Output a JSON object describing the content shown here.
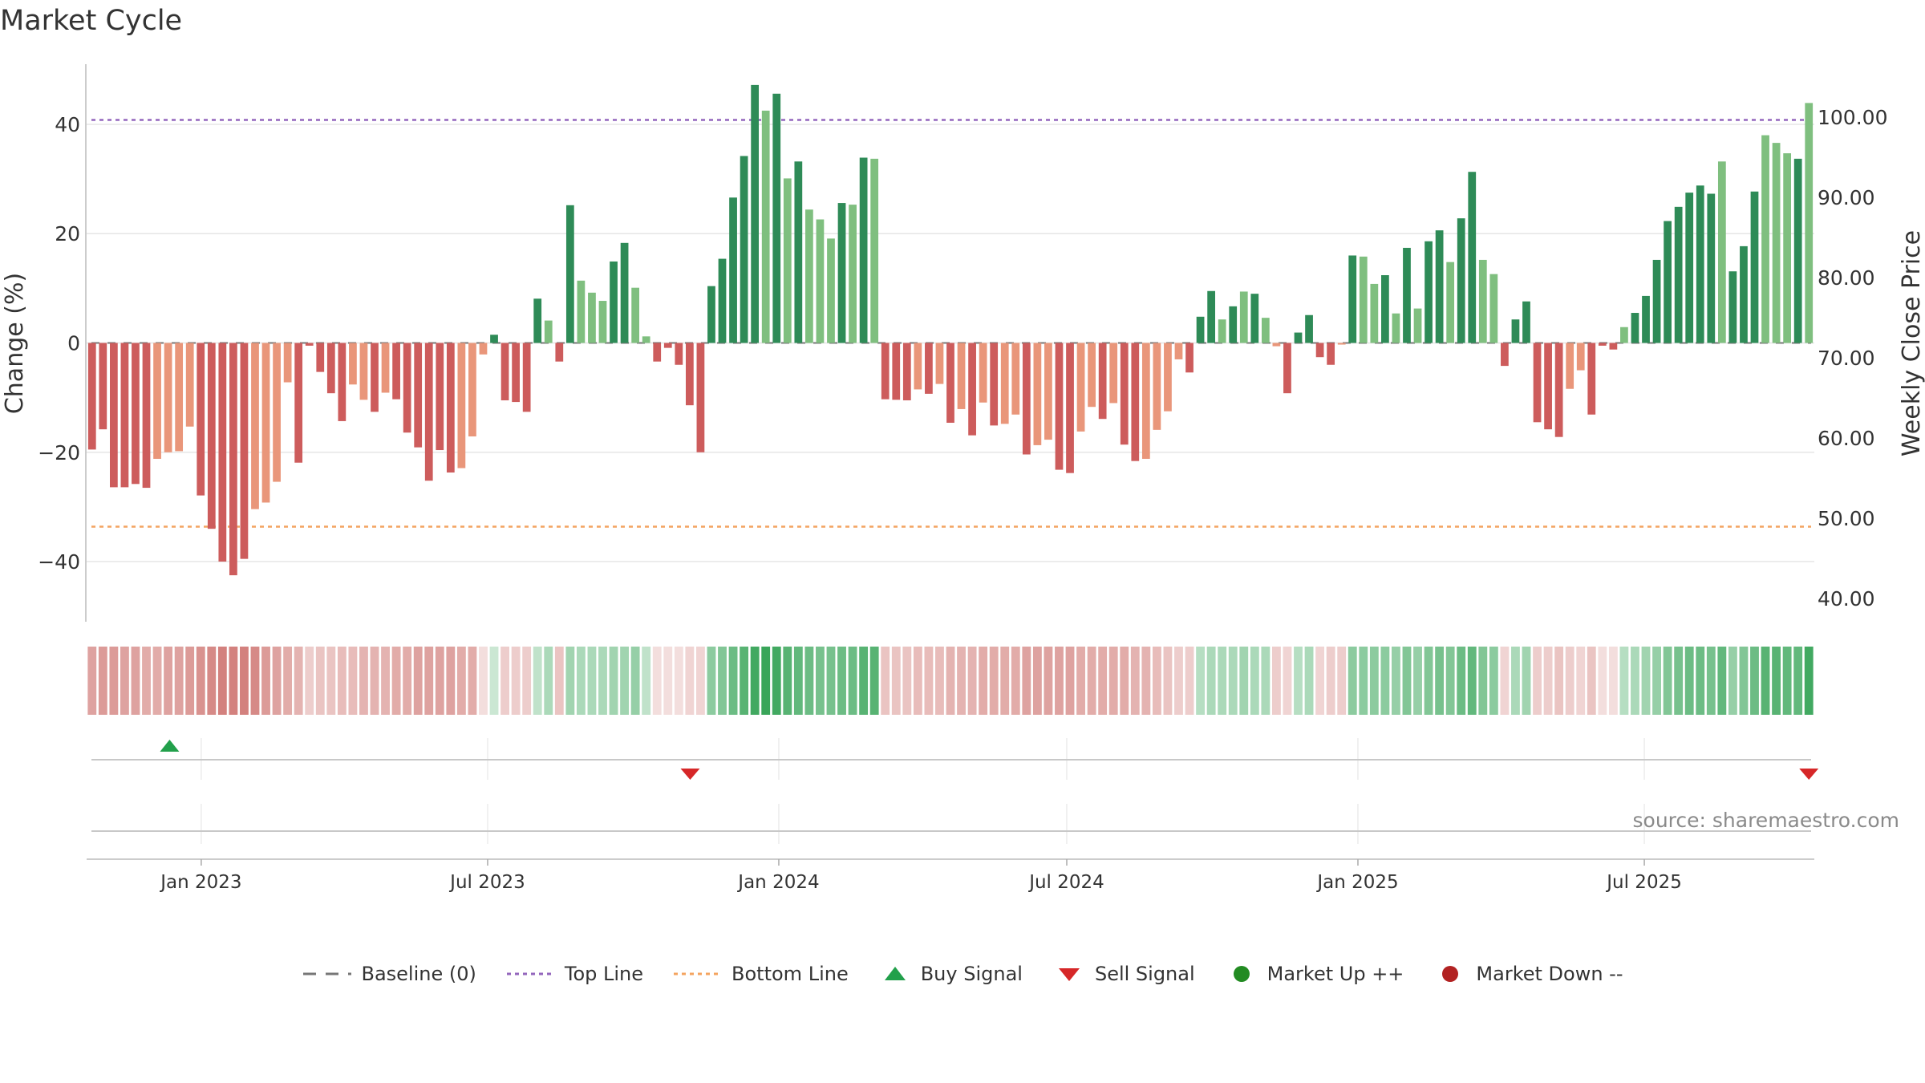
{
  "chart_title": "Market Cycle",
  "source": "source: sharemaestro.com",
  "colors": {
    "pos_strong": "#2e8b57",
    "pos_light": "#7fbf7f",
    "neg_strong": "#cd5c5c",
    "neg_light": "#e9967a",
    "top_line": "#9467bd",
    "bottom_line": "#f4a460",
    "baseline": "#777777",
    "buy": "#22a04b",
    "sell": "#d62728",
    "market_up": "#228b22",
    "market_down": "#b22222"
  },
  "legend": [
    {
      "key": "baseline",
      "label": "Baseline (0)"
    },
    {
      "key": "top",
      "label": "Top Line"
    },
    {
      "key": "bottom",
      "label": "Bottom Line"
    },
    {
      "key": "buy",
      "label": "Buy Signal"
    },
    {
      "key": "sell",
      "label": "Sell Signal"
    },
    {
      "key": "up",
      "label": "Market Up ++"
    },
    {
      "key": "down",
      "label": "Market Down --"
    }
  ],
  "chart_data": {
    "type": "bar",
    "title": "Market Cycle",
    "ylabel": "Change (%)",
    "y2label": "Weekly Close Price",
    "ylim": [
      -51,
      51
    ],
    "y2lim": [
      37.1,
      106.6
    ],
    "yticks": [
      -40,
      -20,
      0,
      20,
      40
    ],
    "ytick_labels": [
      "−40",
      "−20",
      "0",
      "20",
      "40"
    ],
    "y2ticks": [
      40,
      50,
      60,
      70,
      80,
      90,
      100
    ],
    "y2tick_labels": [
      "40.00",
      "50.00",
      "60.00",
      "70.00",
      "80.00",
      "90.00",
      "100.00"
    ],
    "x_start": "2022-10-24",
    "x_end": "2025-10-13",
    "xticks": [
      "2023-01-01",
      "2023-07-01",
      "2024-01-01",
      "2024-07-01",
      "2025-01-01",
      "2025-07-01"
    ],
    "xtick_labels": [
      "Jan 2023",
      "Jul 2023",
      "Jan 2024",
      "Jul 2024",
      "Jan 2025",
      "Jul 2025"
    ],
    "top_line": 40.8,
    "bottom_line": -33.6,
    "baseline": 0,
    "grid": true,
    "legend_position": "bottom",
    "series": [
      {
        "name": "Change (%)",
        "values": [
          -19.5,
          -15.8,
          -26.4,
          -26.4,
          -25.8,
          -26.5,
          -21.2,
          -20,
          -19.8,
          -15.3,
          -27.9,
          -34,
          -40,
          -42.5,
          -39.5,
          -30.4,
          -29.2,
          -25.4,
          -7.2,
          -21.9,
          -0.5,
          -5.3,
          -9.2,
          -14.3,
          -7.6,
          -10.4,
          -12.6,
          -9.1,
          -10.3,
          -16.4,
          -19.1,
          -25.2,
          -19.6,
          -23.7,
          -22.9,
          -17.1,
          -2.1,
          1.5,
          -10.5,
          -10.8,
          -12.6,
          8.1,
          4.1,
          -3.4,
          25.2,
          11.4,
          9.2,
          7.7,
          14.9,
          18.3,
          10.1,
          1.2,
          -3.4,
          -0.9,
          -4,
          -11.4,
          -20,
          10.4,
          15.4,
          26.6,
          34.2,
          47.2,
          42.5,
          45.6,
          30.1,
          33.2,
          24.4,
          22.6,
          19.1,
          25.6,
          25.3,
          33.9,
          33.7,
          -10.3,
          -10.4,
          -10.5,
          -8.5,
          -9.3,
          -7.5,
          -14.6,
          -12.1,
          -16.9,
          -10.9,
          -15.1,
          -14.8,
          -13.1,
          -20.4,
          -18.7,
          -17.7,
          -23.2,
          -23.8,
          -16.2,
          -11.7,
          -13.9,
          -11,
          -18.6,
          -21.6,
          -21.2,
          -15.9,
          -12.5,
          -3,
          -5.4,
          4.8,
          9.5,
          4.3,
          6.7,
          9.4,
          9,
          4.6,
          -0.6,
          -9.2,
          1.9,
          5.1,
          -2.6,
          -4,
          -0.3,
          16,
          15.8,
          10.8,
          12.4,
          5.4,
          17.4,
          6.3,
          18.6,
          20.6,
          14.8,
          22.8,
          31.3,
          15.2,
          12.6,
          -4.2,
          4.3,
          7.6,
          -14.5,
          -15.8,
          -17.2,
          -8.4,
          -5,
          -13.1,
          -0.5,
          -1.2,
          2.9,
          5.5,
          8.6,
          15.2,
          22.3,
          24.9,
          27.5,
          28.8,
          27.3,
          33.2,
          13.1,
          17.7,
          27.7,
          38,
          36.6,
          34.7,
          33.7,
          43.9
        ]
      },
      {
        "name": "Strength",
        "values": [
          0.55,
          0.6,
          0.6,
          0.55,
          0.55,
          0.5,
          0.5,
          0.55,
          0.55,
          0.6,
          0.65,
          0.7,
          0.75,
          0.75,
          0.75,
          0.7,
          0.6,
          0.55,
          0.5,
          0.45,
          0.3,
          0.35,
          0.35,
          0.4,
          0.4,
          0.45,
          0.45,
          0.45,
          0.5,
          0.5,
          0.55,
          0.55,
          0.55,
          0.55,
          0.5,
          0.5,
          0.2,
          0.25,
          0.3,
          0.3,
          0.3,
          0.3,
          0.4,
          0.35,
          0.45,
          0.4,
          0.4,
          0.4,
          0.45,
          0.45,
          0.5,
          0.3,
          0.2,
          0.2,
          0.2,
          0.25,
          0.25,
          0.55,
          0.6,
          0.7,
          0.8,
          0.9,
          0.95,
          0.9,
          0.8,
          0.75,
          0.7,
          0.65,
          0.65,
          0.7,
          0.7,
          0.8,
          0.8,
          0.35,
          0.35,
          0.35,
          0.4,
          0.4,
          0.4,
          0.45,
          0.45,
          0.45,
          0.5,
          0.5,
          0.5,
          0.5,
          0.55,
          0.55,
          0.55,
          0.55,
          0.55,
          0.5,
          0.5,
          0.5,
          0.5,
          0.5,
          0.45,
          0.45,
          0.4,
          0.35,
          0.3,
          0.3,
          0.35,
          0.4,
          0.4,
          0.4,
          0.45,
          0.4,
          0.4,
          0.3,
          0.25,
          0.35,
          0.4,
          0.25,
          0.3,
          0.3,
          0.55,
          0.55,
          0.55,
          0.55,
          0.5,
          0.6,
          0.5,
          0.6,
          0.65,
          0.6,
          0.7,
          0.75,
          0.6,
          0.55,
          0.25,
          0.4,
          0.45,
          0.3,
          0.3,
          0.35,
          0.3,
          0.25,
          0.35,
          0.2,
          0.2,
          0.35,
          0.4,
          0.45,
          0.5,
          0.6,
          0.65,
          0.7,
          0.7,
          0.65,
          0.75,
          0.5,
          0.6,
          0.7,
          0.8,
          0.8,
          0.75,
          0.75,
          0.9
        ]
      }
    ],
    "shade": [
      1,
      1,
      1,
      1,
      1,
      1,
      0,
      0,
      0,
      0,
      1,
      1,
      1,
      1,
      1,
      0,
      0,
      0,
      0,
      1,
      1,
      1,
      1,
      1,
      0,
      0,
      1,
      0,
      1,
      1,
      1,
      1,
      1,
      1,
      0,
      0,
      0,
      1,
      1,
      1,
      1,
      1,
      0,
      1,
      1,
      0,
      0,
      0,
      1,
      1,
      0,
      0,
      1,
      1,
      1,
      1,
      1,
      1,
      1,
      1,
      1,
      1,
      0,
      1,
      0,
      1,
      0,
      0,
      0,
      1,
      0,
      1,
      0,
      1,
      1,
      1,
      0,
      1,
      0,
      1,
      0,
      1,
      0,
      1,
      0,
      0,
      1,
      0,
      0,
      1,
      1,
      0,
      0,
      1,
      0,
      1,
      1,
      0,
      0,
      0,
      0,
      1,
      1,
      1,
      0,
      1,
      0,
      1,
      0,
      0,
      1,
      1,
      1,
      1,
      1,
      0,
      1,
      0,
      0,
      1,
      0,
      1,
      0,
      1,
      1,
      0,
      1,
      1,
      0,
      0,
      1,
      1,
      1,
      1,
      1,
      1,
      0,
      0,
      1,
      1,
      1,
      0,
      1,
      1,
      1,
      1,
      1,
      1,
      1,
      1,
      0,
      1,
      1,
      1,
      0,
      0,
      0,
      1
    ],
    "buy_signals": [
      "2022-12-12"
    ],
    "sell_signals": [
      "2023-11-06",
      "2025-10-13"
    ]
  }
}
